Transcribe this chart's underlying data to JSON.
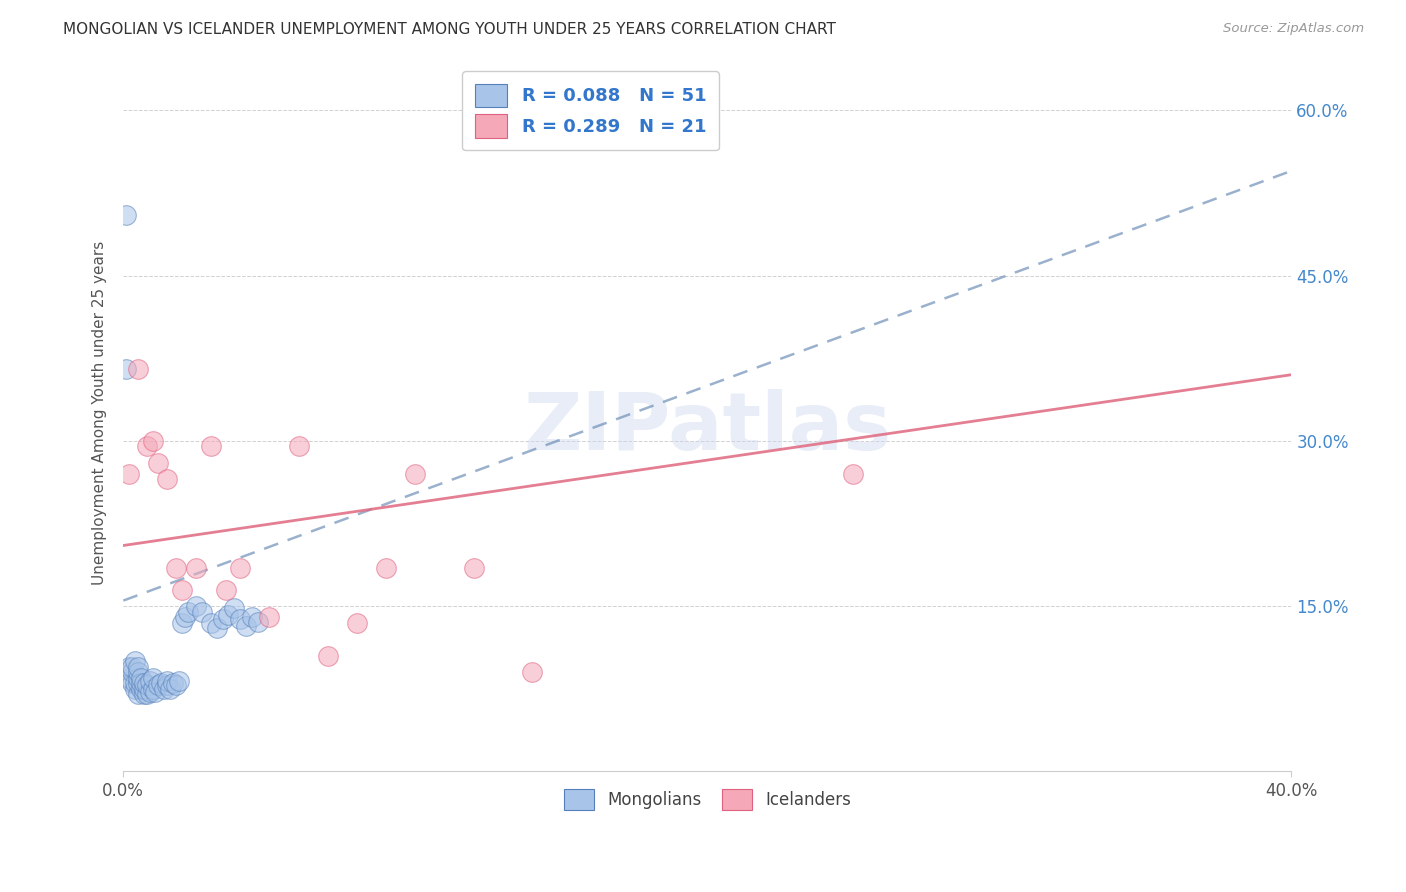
{
  "title": "MONGOLIAN VS ICELANDER UNEMPLOYMENT AMONG YOUTH UNDER 25 YEARS CORRELATION CHART",
  "source": "Source: ZipAtlas.com",
  "ylabel": "Unemployment Among Youth under 25 years",
  "xlim": [
    0.0,
    0.4
  ],
  "ylim": [
    0.0,
    0.65
  ],
  "xtick_positions": [
    0.0,
    0.4
  ],
  "xtick_labels": [
    "0.0%",
    "40.0%"
  ],
  "yticks": [
    0.0,
    0.15,
    0.3,
    0.45,
    0.6
  ],
  "ytick_labels_right": [
    "",
    "15.0%",
    "30.0%",
    "45.0%",
    "60.0%"
  ],
  "legend_R_blue": "R = 0.088",
  "legend_N_blue": "N = 51",
  "legend_R_pink": "R = 0.289",
  "legend_N_pink": "N = 21",
  "blue_color": "#a8c4e8",
  "pink_color": "#f4a8b8",
  "blue_edge_color": "#5580bb",
  "pink_edge_color": "#e06080",
  "blue_line_color": "#7090b8",
  "pink_line_color": "#e06880",
  "title_color": "#333333",
  "legend_text_color": "#3377cc",
  "watermark": "ZIPatlas",
  "mongo_x": [
    0.001,
    0.002,
    0.002,
    0.003,
    0.003,
    0.003,
    0.004,
    0.004,
    0.004,
    0.005,
    0.005,
    0.005,
    0.005,
    0.005,
    0.006,
    0.006,
    0.006,
    0.007,
    0.007,
    0.007,
    0.008,
    0.008,
    0.009,
    0.009,
    0.01,
    0.01,
    0.011,
    0.012,
    0.013,
    0.014,
    0.015,
    0.015,
    0.016,
    0.017,
    0.018,
    0.019,
    0.02,
    0.021,
    0.022,
    0.025,
    0.027,
    0.03,
    0.032,
    0.034,
    0.036,
    0.038,
    0.04,
    0.042,
    0.044,
    0.046,
    0.001
  ],
  "mongo_y": [
    0.505,
    0.085,
    0.095,
    0.08,
    0.09,
    0.095,
    0.075,
    0.08,
    0.1,
    0.07,
    0.08,
    0.085,
    0.09,
    0.095,
    0.075,
    0.08,
    0.085,
    0.07,
    0.075,
    0.08,
    0.07,
    0.078,
    0.072,
    0.082,
    0.075,
    0.085,
    0.072,
    0.078,
    0.08,
    0.075,
    0.078,
    0.082,
    0.075,
    0.08,
    0.078,
    0.082,
    0.135,
    0.14,
    0.145,
    0.15,
    0.145,
    0.135,
    0.13,
    0.138,
    0.142,
    0.148,
    0.138,
    0.132,
    0.14,
    0.136,
    0.365
  ],
  "ice_x": [
    0.002,
    0.005,
    0.008,
    0.01,
    0.012,
    0.015,
    0.018,
    0.02,
    0.025,
    0.03,
    0.035,
    0.04,
    0.05,
    0.06,
    0.07,
    0.08,
    0.09,
    0.1,
    0.12,
    0.14,
    0.25
  ],
  "ice_y": [
    0.27,
    0.365,
    0.295,
    0.3,
    0.28,
    0.265,
    0.185,
    0.165,
    0.185,
    0.295,
    0.165,
    0.185,
    0.14,
    0.295,
    0.105,
    0.135,
    0.185,
    0.27,
    0.185,
    0.09,
    0.27
  ],
  "blue_trend_x0": 0.0,
  "blue_trend_y0": 0.155,
  "blue_trend_x1": 0.4,
  "blue_trend_y1": 0.545,
  "pink_trend_x0": 0.0,
  "pink_trend_y0": 0.205,
  "pink_trend_x1": 0.4,
  "pink_trend_y1": 0.36
}
